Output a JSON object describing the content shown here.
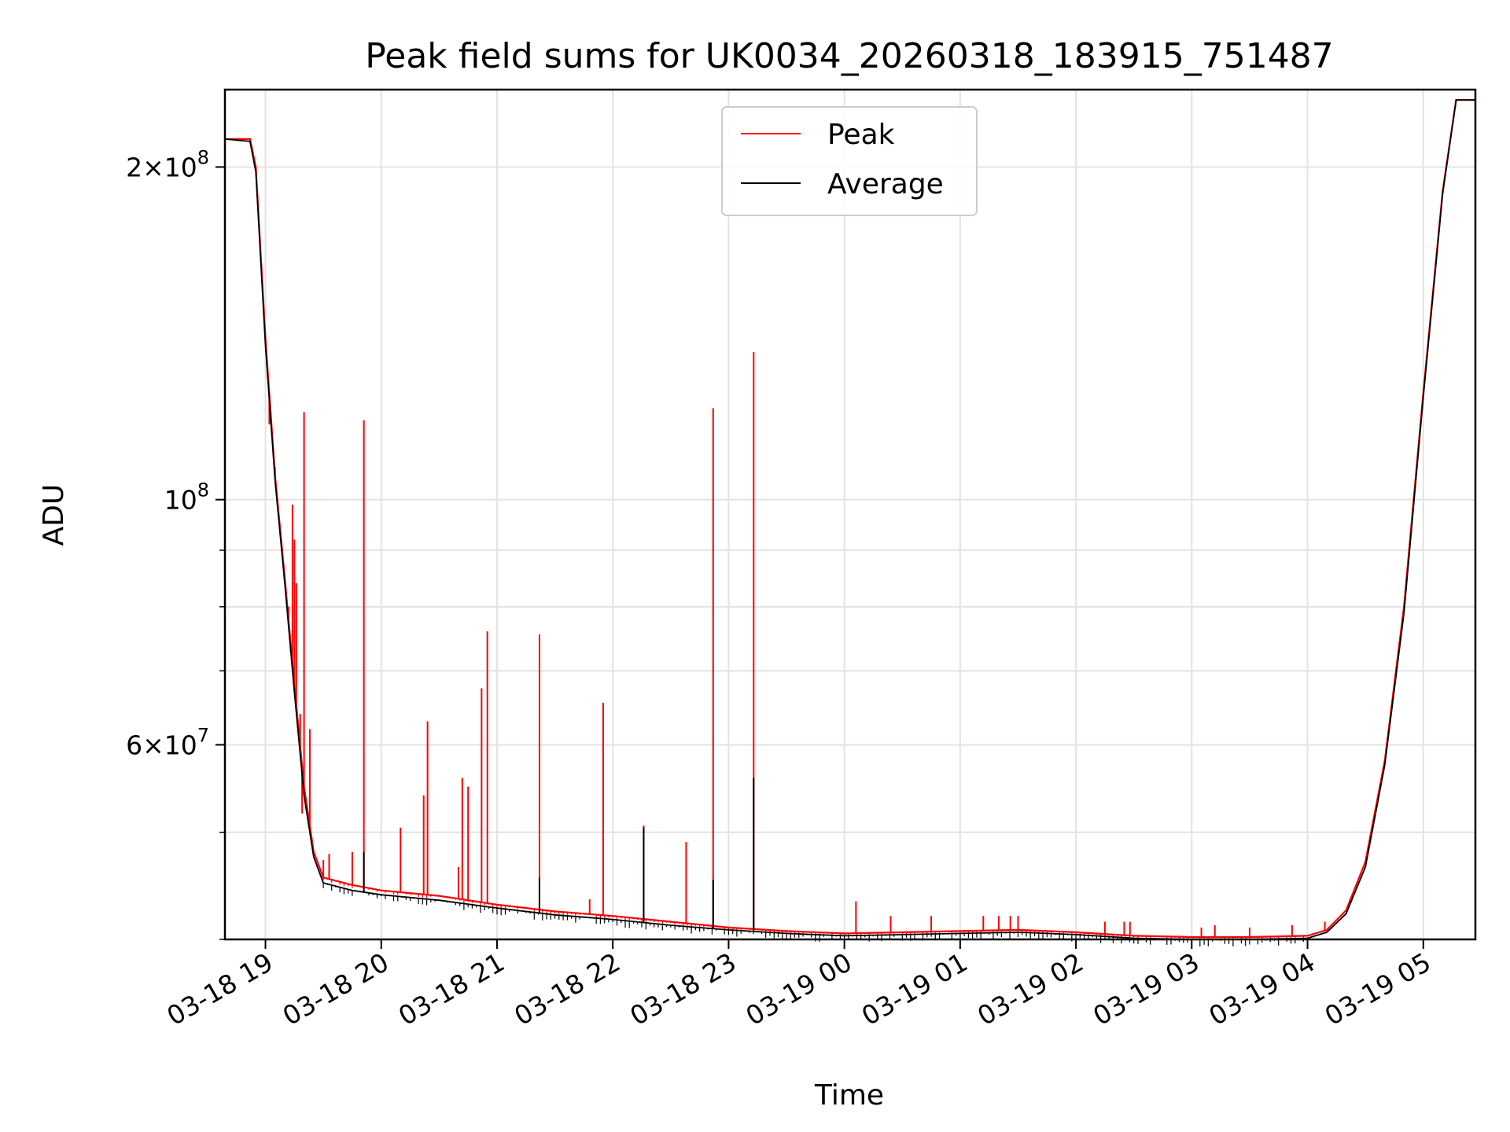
{
  "chart_data": {
    "type": "line",
    "title": "Peak field sums for UK0034_20260318_183915_751487",
    "xlabel": "Time",
    "ylabel": "ADU",
    "yscale": "log",
    "grid": true,
    "legend_position": "upper center",
    "xlim": [
      "2026-03-18 18:39",
      "2026-03-19 05:27"
    ],
    "ylim": [
      40000000,
      235000000
    ],
    "x_ticks": [
      {
        "value": "2026-03-18 19:00",
        "label": "03-18 19"
      },
      {
        "value": "2026-03-18 20:00",
        "label": "03-18 20"
      },
      {
        "value": "2026-03-18 21:00",
        "label": "03-18 21"
      },
      {
        "value": "2026-03-18 22:00",
        "label": "03-18 22"
      },
      {
        "value": "2026-03-18 23:00",
        "label": "03-18 23"
      },
      {
        "value": "2026-03-19 00:00",
        "label": "03-19 00"
      },
      {
        "value": "2026-03-19 01:00",
        "label": "03-19 01"
      },
      {
        "value": "2026-03-19 02:00",
        "label": "03-19 02"
      },
      {
        "value": "2026-03-19 03:00",
        "label": "03-19 03"
      },
      {
        "value": "2026-03-19 04:00",
        "label": "03-19 04"
      },
      {
        "value": "2026-03-19 05:00",
        "label": "03-19 05"
      }
    ],
    "y_ticks_major": [
      {
        "value": 60000000,
        "base": "6",
        "exp": "7"
      },
      {
        "value": 100000000,
        "base": "",
        "exp": "8"
      },
      {
        "value": 200000000,
        "base": "2",
        "exp": "8"
      }
    ],
    "y_ticks_minor": [
      40000000,
      50000000,
      70000000,
      80000000,
      90000000,
      300000000
    ],
    "series": [
      {
        "name": "Peak",
        "color": "#ff0000",
        "points": [
          [
            "2026-03-18 18:39",
            212000000
          ],
          [
            "2026-03-18 18:52",
            212000000
          ],
          [
            "2026-03-18 18:55",
            200000000
          ],
          [
            "2026-03-18 19:00",
            140000000
          ],
          [
            "2026-03-18 19:05",
            105000000
          ],
          [
            "2026-03-18 19:10",
            85000000
          ],
          [
            "2026-03-18 19:15",
            68000000
          ],
          [
            "2026-03-18 19:20",
            55000000
          ],
          [
            "2026-03-18 19:25",
            48000000
          ],
          [
            "2026-03-18 19:30",
            45500000
          ],
          [
            "2026-03-18 19:45",
            44800000
          ],
          [
            "2026-03-18 20:00",
            44300000
          ],
          [
            "2026-03-18 20:30",
            43800000
          ],
          [
            "2026-03-18 21:00",
            43000000
          ],
          [
            "2026-03-18 21:30",
            42400000
          ],
          [
            "2026-03-18 22:00",
            42000000
          ],
          [
            "2026-03-18 22:30",
            41500000
          ],
          [
            "2026-03-18 23:00",
            41000000
          ],
          [
            "2026-03-18 23:30",
            40700000
          ],
          [
            "2026-03-19 00:00",
            40500000
          ],
          [
            "2026-03-19 00:30",
            40600000
          ],
          [
            "2026-03-19 01:00",
            40700000
          ],
          [
            "2026-03-19 01:30",
            40800000
          ],
          [
            "2026-03-19 02:00",
            40600000
          ],
          [
            "2026-03-19 02:30",
            40300000
          ],
          [
            "2026-03-19 03:00",
            40200000
          ],
          [
            "2026-03-19 03:30",
            40200000
          ],
          [
            "2026-03-19 04:00",
            40300000
          ],
          [
            "2026-03-19 04:10",
            40800000
          ],
          [
            "2026-03-19 04:20",
            42500000
          ],
          [
            "2026-03-19 04:30",
            47000000
          ],
          [
            "2026-03-19 04:40",
            58000000
          ],
          [
            "2026-03-19 04:50",
            80000000
          ],
          [
            "2026-03-19 05:00",
            125000000
          ],
          [
            "2026-03-19 05:10",
            190000000
          ],
          [
            "2026-03-19 05:17",
            230000000
          ],
          [
            "2026-03-19 05:27",
            230000000
          ]
        ],
        "spikes": [
          [
            "2026-03-18 19:02",
            117000000
          ],
          [
            "2026-03-18 19:05",
            107000000
          ],
          [
            "2026-03-18 19:12",
            80000000
          ],
          [
            "2026-03-18 19:13",
            73000000
          ],
          [
            "2026-03-18 19:14",
            99000000
          ],
          [
            "2026-03-18 19:15",
            92000000
          ],
          [
            "2026-03-18 19:16",
            84000000
          ],
          [
            "2026-03-18 19:18",
            64000000
          ],
          [
            "2026-03-18 19:19",
            52000000
          ],
          [
            "2026-03-18 19:20",
            120000000
          ],
          [
            "2026-03-18 19:23",
            62000000
          ],
          [
            "2026-03-18 19:30",
            47200000
          ],
          [
            "2026-03-18 19:33",
            47800000
          ],
          [
            "2026-03-18 19:45",
            48000000
          ],
          [
            "2026-03-18 19:51",
            118000000
          ],
          [
            "2026-03-18 20:10",
            50500000
          ],
          [
            "2026-03-18 20:22",
            54000000
          ],
          [
            "2026-03-18 20:24",
            63000000
          ],
          [
            "2026-03-18 20:40",
            46500000
          ],
          [
            "2026-03-18 20:42",
            56000000
          ],
          [
            "2026-03-18 20:45",
            55000000
          ],
          [
            "2026-03-18 20:52",
            67500000
          ],
          [
            "2026-03-18 20:55",
            76000000
          ],
          [
            "2026-03-18 21:22",
            75500000
          ],
          [
            "2026-03-18 21:48",
            43500000
          ],
          [
            "2026-03-18 21:55",
            65500000
          ],
          [
            "2026-03-18 22:16",
            50700000
          ],
          [
            "2026-03-18 22:38",
            49000000
          ],
          [
            "2026-03-18 22:52",
            121000000
          ],
          [
            "2026-03-18 23:13",
            136000000
          ],
          [
            "2026-03-19 00:06",
            43300000
          ],
          [
            "2026-03-19 00:24",
            42000000
          ],
          [
            "2026-03-19 00:45",
            42000000
          ],
          [
            "2026-03-19 01:12",
            42000000
          ],
          [
            "2026-03-19 01:20",
            42000000
          ],
          [
            "2026-03-19 01:26",
            42000000
          ],
          [
            "2026-03-19 01:30",
            42000000
          ],
          [
            "2026-03-19 02:15",
            41500000
          ],
          [
            "2026-03-19 02:25",
            41500000
          ],
          [
            "2026-03-19 02:28",
            41500000
          ],
          [
            "2026-03-19 03:05",
            41000000
          ],
          [
            "2026-03-19 03:12",
            41200000
          ],
          [
            "2026-03-19 03:30",
            41000000
          ],
          [
            "2026-03-19 03:52",
            41200000
          ],
          [
            "2026-03-19 04:09",
            41500000
          ],
          [
            "2026-03-19 04:22",
            43500000
          ],
          [
            "2026-03-19 04:30",
            47000000
          ],
          [
            "2026-03-19 04:35",
            52000000
          ]
        ]
      },
      {
        "name": "Average",
        "color": "#000000",
        "points": [
          [
            "2026-03-18 18:39",
            212000000
          ],
          [
            "2026-03-18 18:52",
            211000000
          ],
          [
            "2026-03-18 18:55",
            198000000
          ],
          [
            "2026-03-18 19:00",
            138000000
          ],
          [
            "2026-03-18 19:05",
            104000000
          ],
          [
            "2026-03-18 19:10",
            84000000
          ],
          [
            "2026-03-18 19:15",
            67000000
          ],
          [
            "2026-03-18 19:20",
            54000000
          ],
          [
            "2026-03-18 19:25",
            47500000
          ],
          [
            "2026-03-18 19:30",
            45000000
          ],
          [
            "2026-03-18 19:45",
            44300000
          ],
          [
            "2026-03-18 20:00",
            43900000
          ],
          [
            "2026-03-18 20:30",
            43400000
          ],
          [
            "2026-03-18 21:00",
            42700000
          ],
          [
            "2026-03-18 21:30",
            42100000
          ],
          [
            "2026-03-18 22:00",
            41700000
          ],
          [
            "2026-03-18 22:30",
            41200000
          ],
          [
            "2026-03-18 23:00",
            40800000
          ],
          [
            "2026-03-18 23:30",
            40500000
          ],
          [
            "2026-03-19 00:00",
            40300000
          ],
          [
            "2026-03-19 00:30",
            40400000
          ],
          [
            "2026-03-19 01:00",
            40500000
          ],
          [
            "2026-03-19 01:30",
            40600000
          ],
          [
            "2026-03-19 02:00",
            40400000
          ],
          [
            "2026-03-19 02:30",
            40100000
          ],
          [
            "2026-03-19 03:00",
            40000000
          ],
          [
            "2026-03-19 03:30",
            40000000
          ],
          [
            "2026-03-19 04:00",
            40100000
          ],
          [
            "2026-03-19 04:10",
            40600000
          ],
          [
            "2026-03-19 04:20",
            42200000
          ],
          [
            "2026-03-19 04:30",
            46500000
          ],
          [
            "2026-03-19 04:40",
            57500000
          ],
          [
            "2026-03-19 04:50",
            79000000
          ],
          [
            "2026-03-19 05:00",
            124000000
          ],
          [
            "2026-03-19 05:10",
            189000000
          ],
          [
            "2026-03-19 05:17",
            230000000
          ],
          [
            "2026-03-19 05:27",
            230000000
          ]
        ],
        "spikes": [
          [
            "2026-03-18 19:51",
            48000000
          ],
          [
            "2026-03-18 21:22",
            45500000
          ],
          [
            "2026-03-18 22:16",
            50500000
          ],
          [
            "2026-03-18 22:52",
            45300000
          ],
          [
            "2026-03-18 23:13",
            56000000
          ]
        ]
      }
    ]
  }
}
